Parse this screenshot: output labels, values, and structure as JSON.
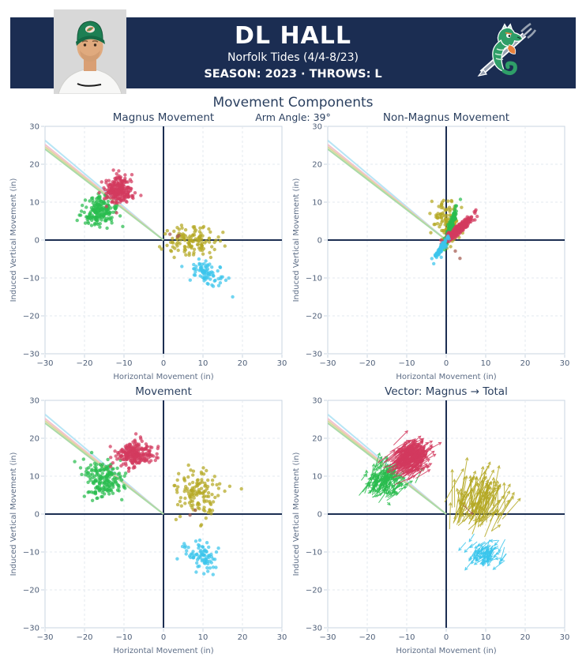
{
  "header": {
    "player_name": "DL HALL",
    "team_line": "Norfolk Tides (4/4-8/23)",
    "season_line": "SEASON: 2023 · THROWS: L",
    "band_color": "#1b2d52",
    "icons": {
      "player_photo": "player-headshot",
      "team_logo": "norfolk-tides-seahorse"
    }
  },
  "chart_data": {
    "type": "scatter",
    "suptitle": "Movement Components",
    "subtitle": "Arm Angle: 39°",
    "arm_angle_deg": 39,
    "axis": {
      "xlabel": "Horizontal Movement (in)",
      "ylabel": "Induced Vertical Movement (in)",
      "xlim": [
        -30,
        30
      ],
      "ylim": [
        -30,
        30
      ],
      "ticks": [
        -30,
        -20,
        -10,
        0,
        10,
        20,
        30
      ],
      "grid": "dashed",
      "legend": "none"
    },
    "style": {
      "zero_line": "#1c2e52",
      "grid_color": "#e3e8ef",
      "border_color": "#c9d4e0",
      "title_color": "#2a3f5f",
      "tick_color": "#4f5f78",
      "axis_title_color": "#5d6d86"
    },
    "colors": {
      "crimson": "#d23a5e",
      "green": "#2abc4f",
      "olive": "#b4a823",
      "cyan": "#3ac5ec",
      "brown": "#a35a50"
    },
    "arm_lines": [
      {
        "color": "#b7e5f5",
        "from": [
          0,
          0
        ],
        "to": [
          -30,
          26.3
        ]
      },
      {
        "color": "#f4c2cd",
        "from": [
          0,
          0
        ],
        "to": [
          -30,
          25.2
        ]
      },
      {
        "color": "#ddd8a0",
        "from": [
          0,
          0
        ],
        "to": [
          -30,
          24.6
        ]
      },
      {
        "color": "#a9daa7",
        "from": [
          0,
          0
        ],
        "to": [
          -30,
          24.0
        ]
      }
    ],
    "charts": [
      {
        "key": "magnus-movement",
        "title": "Magnus Movement",
        "clusters": [
          {
            "color": "green",
            "n": 185,
            "center": [
              -16.4,
              7.4
            ],
            "axis1": [
              2.1,
              0
            ],
            "axis2": [
              0,
              2.0
            ]
          },
          {
            "color": "crimson",
            "n": 230,
            "center": [
              -11.4,
              13.1
            ],
            "axis1": [
              1.9,
              -0.4
            ],
            "axis2": [
              0.4,
              1.8
            ]
          },
          {
            "color": "olive",
            "n": 130,
            "center": [
              6.8,
              -0.4
            ],
            "axis1": [
              3.1,
              0.3
            ],
            "axis2": [
              -0.2,
              1.9
            ]
          },
          {
            "color": "cyan",
            "n": 80,
            "center": [
              11.0,
              -8.8
            ],
            "axis1": [
              2.0,
              -1.3
            ],
            "axis2": [
              0.9,
              1.1
            ]
          },
          {
            "color": "brown",
            "n": 3,
            "center": [
              3.2,
              1.6
            ],
            "axis1": [
              1.1,
              0
            ],
            "axis2": [
              0,
              1.1
            ]
          }
        ]
      },
      {
        "key": "non-magnus-movement",
        "title": "Non-Magnus Movement",
        "clusters": [
          {
            "color": "olive",
            "n": 130,
            "center": [
              0.4,
              5.2
            ],
            "axis1": [
              1.5,
              0.6
            ],
            "axis2": [
              -0.7,
              2.9
            ]
          },
          {
            "color": "green",
            "n": 185,
            "center": [
              1.1,
              3.4
            ],
            "axis1": [
              0.7,
              2.3
            ],
            "axis2": [
              0.25,
              -0.08
            ]
          },
          {
            "color": "crimson",
            "n": 230,
            "center": [
              3.2,
              2.9
            ],
            "axis1": [
              1.75,
              1.6
            ],
            "axis2": [
              0.35,
              -0.38
            ]
          },
          {
            "color": "cyan",
            "n": 80,
            "center": [
              -1.4,
              -2.3
            ],
            "axis1": [
              1.0,
              1.55
            ],
            "axis2": [
              0.28,
              -0.18
            ]
          },
          {
            "color": "brown",
            "n": 2,
            "center": [
              2.2,
              -3.2
            ],
            "axis1": [
              0.7,
              -1.1
            ],
            "axis2": [
              0.2,
              0.15
            ]
          }
        ]
      },
      {
        "key": "movement",
        "title": "Movement",
        "clusters": [
          {
            "color": "green",
            "n": 185,
            "center": [
              -15.2,
              8.9
            ],
            "axis1": [
              2.2,
              0.6
            ],
            "axis2": [
              -0.5,
              2.4
            ]
          },
          {
            "color": "crimson",
            "n": 230,
            "center": [
              -7.3,
              15.9
            ],
            "axis1": [
              2.4,
              0.5
            ],
            "axis2": [
              -0.4,
              1.5
            ]
          },
          {
            "color": "olive",
            "n": 130,
            "center": [
              9.0,
              5.6
            ],
            "axis1": [
              3.3,
              0
            ],
            "axis2": [
              0,
              3.0
            ]
          },
          {
            "color": "cyan",
            "n": 80,
            "center": [
              9.4,
              -11.0
            ],
            "axis1": [
              2.0,
              -1.2
            ],
            "axis2": [
              0.8,
              1.3
            ]
          },
          {
            "color": "brown",
            "n": 2,
            "center": [
              6.9,
              0.1
            ],
            "axis1": [
              0.8,
              0
            ],
            "axis2": [
              0,
              0.8
            ]
          }
        ]
      },
      {
        "key": "vector-magnus-to-total",
        "title": "Vector: Magnus → Total",
        "vector": true,
        "clusters": [
          {
            "color": "green",
            "n": 150,
            "center": [
              -16.4,
              7.4
            ],
            "axis1": [
              2.0,
              0
            ],
            "axis2": [
              0,
              2.0
            ],
            "delta": [
              1.4,
              2.1
            ],
            "delta_spread": [
              0.9,
              1.2
            ]
          },
          {
            "color": "crimson",
            "n": 200,
            "center": [
              -11.4,
              13.1
            ],
            "axis1": [
              1.9,
              0
            ],
            "axis2": [
              0,
              1.8
            ],
            "delta": [
              4.1,
              2.9
            ],
            "delta_spread": [
              1.0,
              0.8
            ]
          },
          {
            "color": "olive",
            "n": 105,
            "center": [
              6.8,
              -0.4
            ],
            "axis1": [
              3.1,
              0
            ],
            "axis2": [
              0,
              1.9
            ],
            "delta": [
              2.2,
              6.2
            ],
            "delta_spread": [
              1.5,
              2.5
            ]
          },
          {
            "color": "cyan",
            "n": 70,
            "center": [
              11.0,
              -8.8
            ],
            "axis1": [
              2.0,
              -1.2
            ],
            "axis2": [
              0.8,
              1.1
            ],
            "delta": [
              -1.9,
              -2.3
            ],
            "delta_spread": [
              0.9,
              0.9
            ]
          },
          {
            "color": "brown",
            "n": 1,
            "center": [
              4.2,
              2.4
            ],
            "axis1": [
              0.1,
              0
            ],
            "axis2": [
              0,
              0.1
            ],
            "delta": [
              2.6,
              -2.4
            ],
            "delta_spread": [
              0.1,
              0.1
            ]
          }
        ]
      }
    ]
  }
}
